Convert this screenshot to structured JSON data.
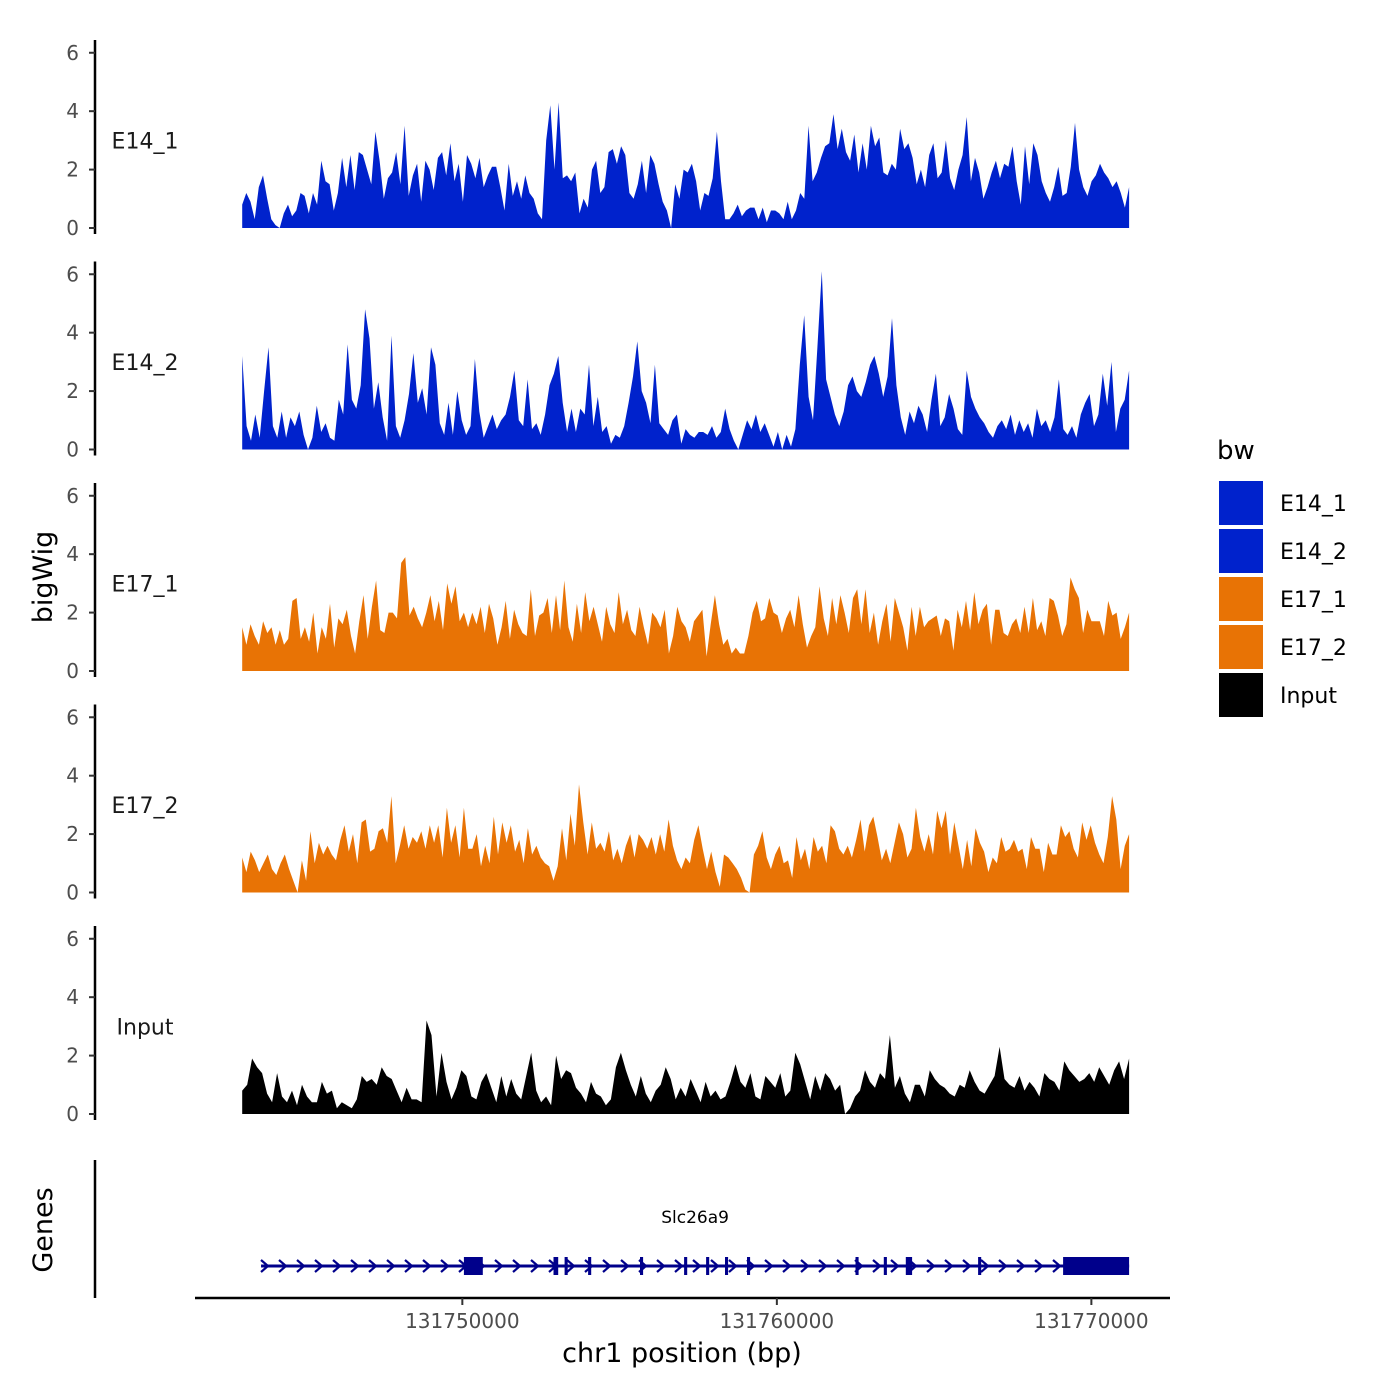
{
  "chart_data": {
    "type": "area",
    "ylabel": "bigWig",
    "xlabel": "chr1 position (bp)",
    "ylim": [
      0,
      6.3
    ],
    "yticks": [
      0,
      2,
      4,
      6
    ],
    "xlim": [
      131741500,
      131772500
    ],
    "xticks": [
      131750000,
      131760000,
      131770000
    ],
    "xtick_labels": [
      "131750000",
      "131760000",
      "131770000"
    ],
    "x_start": 131743000,
    "x_end": 131771200,
    "legend": {
      "title": "bw",
      "placement": "right",
      "entries": [
        {
          "name": "E14_1",
          "color": "#0022cc"
        },
        {
          "name": "E14_2",
          "color": "#0022cc"
        },
        {
          "name": "E17_1",
          "color": "#e87305"
        },
        {
          "name": "E17_2",
          "color": "#e87305"
        },
        {
          "name": "Input",
          "color": "#000000"
        }
      ]
    },
    "series": [
      {
        "name": "E14_1",
        "color": "#0022cc",
        "values": [
          0.8,
          1.2,
          0.9,
          0.3,
          1.4,
          1.8,
          1.0,
          0.3,
          0.1,
          0.0,
          0.5,
          0.8,
          0.4,
          0.6,
          1.2,
          1.1,
          0.5,
          1.2,
          0.8,
          2.3,
          1.6,
          1.5,
          0.6,
          1.2,
          2.4,
          1.4,
          2.5,
          1.3,
          2.6,
          2.5,
          2.0,
          1.5,
          3.3,
          2.3,
          1.0,
          1.7,
          1.9,
          2.6,
          1.5,
          3.5,
          1.1,
          1.8,
          2.2,
          0.9,
          2.3,
          2.0,
          1.3,
          2.4,
          2.6,
          1.8,
          2.9,
          1.6,
          2.2,
          0.9,
          2.5,
          2.2,
          1.7,
          2.4,
          1.4,
          1.8,
          2.1,
          2.1,
          1.4,
          0.6,
          2.2,
          1.1,
          1.6,
          1.0,
          1.8,
          1.2,
          1.0,
          0.5,
          0.3,
          3.0,
          4.2,
          2.0,
          4.3,
          1.7,
          1.8,
          1.6,
          1.9,
          0.5,
          1.0,
          0.7,
          2.0,
          2.3,
          1.2,
          1.4,
          2.6,
          2.7,
          2.2,
          2.8,
          2.5,
          1.2,
          1.0,
          1.5,
          2.3,
          1.2,
          2.5,
          2.2,
          1.5,
          0.9,
          0.6,
          0.0,
          1.5,
          1.0,
          2.0,
          1.9,
          2.2,
          1.6,
          0.6,
          1.2,
          1.1,
          1.7,
          3.3,
          1.6,
          0.3,
          0.3,
          0.5,
          0.8,
          0.4,
          0.6,
          0.7,
          0.7,
          0.3,
          0.7,
          0.2,
          0.6,
          0.6,
          0.5,
          0.3,
          0.9,
          0.3,
          0.6,
          1.2,
          1.0,
          3.5,
          1.6,
          1.9,
          2.4,
          2.8,
          2.9,
          3.9,
          2.7,
          3.4,
          2.6,
          2.3,
          3.2,
          1.9,
          2.9,
          2.0,
          3.5,
          2.8,
          3.1,
          1.9,
          1.8,
          2.2,
          2.0,
          3.4,
          2.7,
          2.9,
          2.4,
          1.5,
          2.0,
          1.4,
          2.5,
          2.9,
          1.7,
          1.9,
          3.0,
          1.7,
          1.3,
          2.0,
          2.5,
          3.8,
          1.6,
          2.4,
          1.9,
          1.0,
          1.4,
          1.9,
          2.3,
          1.7,
          2.2,
          2.1,
          2.8,
          1.6,
          0.8,
          2.8,
          1.5,
          2.9,
          2.5,
          1.6,
          1.2,
          0.9,
          1.4,
          2.1,
          1.1,
          1.2,
          2.1,
          3.6,
          2.0,
          1.4,
          1.1,
          1.6,
          1.8,
          2.2,
          1.9,
          1.7,
          1.4,
          1.6,
          1.2,
          0.7,
          1.4
        ]
      },
      {
        "name": "E14_2",
        "color": "#0022cc",
        "values": [
          3.2,
          0.8,
          0.3,
          1.2,
          0.4,
          2.0,
          3.5,
          0.8,
          0.4,
          1.3,
          0.4,
          1.1,
          0.8,
          1.3,
          0.5,
          0.0,
          0.4,
          1.5,
          0.6,
          0.9,
          0.4,
          0.3,
          1.7,
          1.2,
          3.6,
          1.7,
          1.4,
          2.2,
          4.8,
          3.8,
          1.4,
          2.3,
          1.1,
          0.3,
          3.9,
          0.8,
          0.4,
          1.0,
          1.9,
          3.3,
          1.6,
          2.1,
          1.2,
          3.5,
          2.9,
          0.9,
          0.5,
          1.6,
          0.5,
          2.0,
          1.0,
          0.5,
          0.8,
          3.1,
          1.3,
          0.4,
          0.8,
          1.2,
          0.7,
          1.0,
          1.2,
          1.8,
          2.7,
          1.0,
          0.8,
          2.4,
          0.7,
          0.9,
          0.5,
          1.2,
          2.2,
          2.6,
          3.2,
          1.6,
          0.6,
          1.4,
          0.6,
          1.4,
          1.2,
          2.9,
          0.8,
          1.8,
          0.6,
          0.8,
          0.2,
          0.5,
          0.4,
          0.8,
          1.6,
          2.5,
          3.7,
          2.0,
          1.6,
          0.9,
          2.9,
          0.9,
          0.7,
          0.5,
          1.0,
          1.2,
          0.2,
          0.7,
          0.5,
          0.4,
          0.6,
          0.6,
          0.5,
          0.8,
          0.4,
          0.6,
          1.4,
          0.7,
          0.3,
          0.0,
          0.5,
          1.0,
          0.7,
          1.2,
          0.6,
          0.9,
          0.5,
          0.1,
          0.6,
          0.0,
          0.5,
          0.1,
          0.7,
          2.9,
          4.6,
          1.8,
          1.0,
          3.5,
          6.1,
          2.4,
          1.8,
          1.2,
          0.8,
          1.3,
          2.2,
          2.5,
          2.0,
          1.8,
          2.3,
          2.9,
          3.2,
          2.6,
          1.8,
          2.5,
          4.5,
          2.2,
          1.1,
          0.5,
          1.3,
          0.9,
          1.5,
          1.2,
          0.6,
          1.7,
          2.6,
          0.8,
          1.1,
          1.9,
          1.4,
          0.7,
          0.5,
          2.7,
          1.8,
          1.4,
          1.1,
          0.9,
          0.6,
          0.4,
          0.8,
          1.0,
          0.7,
          1.2,
          0.5,
          1.0,
          0.6,
          0.9,
          0.4,
          1.4,
          0.8,
          1.0,
          0.6,
          1.1,
          2.4,
          0.7,
          0.5,
          0.8,
          0.4,
          1.2,
          1.6,
          1.9,
          0.8,
          1.2,
          2.6,
          1.5,
          3.0,
          0.6,
          1.4,
          1.7,
          2.7
        ]
      },
      {
        "name": "E17_1",
        "color": "#e87305",
        "values": [
          1.5,
          0.9,
          1.6,
          1.2,
          0.9,
          1.7,
          1.3,
          1.5,
          0.9,
          1.4,
          0.9,
          1.1,
          2.4,
          2.5,
          1.1,
          1.5,
          1.0,
          2.0,
          0.6,
          1.5,
          1.1,
          2.3,
          0.8,
          1.8,
          1.6,
          2.1,
          1.2,
          0.6,
          1.7,
          2.6,
          1.1,
          2.2,
          3.1,
          1.4,
          1.3,
          2.0,
          2.0,
          1.8,
          3.7,
          3.9,
          1.9,
          2.2,
          1.8,
          1.5,
          2.0,
          2.6,
          1.7,
          2.4,
          1.4,
          3.0,
          2.3,
          2.9,
          1.7,
          2.0,
          1.5,
          2.0,
          1.6,
          2.2,
          1.3,
          2.3,
          1.8,
          0.9,
          1.5,
          2.4,
          1.1,
          2.1,
          1.6,
          1.3,
          1.2,
          2.8,
          1.2,
          1.9,
          2.0,
          2.5,
          1.3,
          2.6,
          1.4,
          3.1,
          1.5,
          1.0,
          2.3,
          1.3,
          2.7,
          1.7,
          2.2,
          1.6,
          1.0,
          2.2,
          1.6,
          1.3,
          2.7,
          1.6,
          2.1,
          1.4,
          1.2,
          2.2,
          1.5,
          0.9,
          2.0,
          1.8,
          1.5,
          2.1,
          0.6,
          1.2,
          2.2,
          1.7,
          1.5,
          1.0,
          1.7,
          1.9,
          2.1,
          0.5,
          1.6,
          2.6,
          1.6,
          0.9,
          1.1,
          0.6,
          0.8,
          0.6,
          0.6,
          1.2,
          2.0,
          2.4,
          1.7,
          1.8,
          2.5,
          2.0,
          1.9,
          1.3,
          1.8,
          2.1,
          1.5,
          2.6,
          1.6,
          0.8,
          1.2,
          1.5,
          2.9,
          1.8,
          1.2,
          2.5,
          1.6,
          2.6,
          2.0,
          1.3,
          2.5,
          2.8,
          1.6,
          2.8,
          1.3,
          2.0,
          0.9,
          1.7,
          2.3,
          1.0,
          2.5,
          2.0,
          1.5,
          0.7,
          2.2,
          1.2,
          2.2,
          1.5,
          1.7,
          1.8,
          1.9,
          1.2,
          1.8,
          1.7,
          0.7,
          2.1,
          1.5,
          2.4,
          1.4,
          2.7,
          1.6,
          2.1,
          2.3,
          0.9,
          2.1,
          2.1,
          1.3,
          1.2,
          1.6,
          1.8,
          1.3,
          2.2,
          1.3,
          2.5,
          1.4,
          1.7,
          1.2,
          2.5,
          2.4,
          1.9,
          1.2,
          1.6,
          3.2,
          2.8,
          2.5,
          1.3,
          2.1,
          1.7,
          1.7,
          1.7,
          1.2,
          2.4,
          1.9,
          2.0,
          1.1,
          1.5,
          2.0
        ]
      },
      {
        "name": "E17_2",
        "color": "#e87305",
        "values": [
          1.2,
          0.7,
          1.4,
          1.1,
          0.7,
          1.0,
          1.3,
          0.8,
          0.6,
          1.0,
          1.3,
          0.8,
          0.4,
          0.0,
          1.1,
          0.4,
          2.1,
          1.0,
          1.7,
          1.3,
          1.6,
          1.3,
          1.1,
          1.8,
          2.3,
          1.4,
          2.0,
          1.0,
          2.4,
          2.5,
          1.4,
          1.5,
          2.1,
          2.2,
          1.7,
          3.3,
          1.0,
          1.6,
          2.3,
          1.5,
          1.9,
          1.7,
          2.1,
          1.5,
          2.3,
          1.7,
          2.3,
          1.2,
          2.9,
          1.7,
          2.3,
          1.2,
          2.9,
          1.5,
          1.5,
          2.0,
          0.9,
          1.6,
          1.0,
          2.6,
          1.3,
          2.4,
          1.7,
          2.3,
          1.4,
          1.8,
          1.0,
          2.2,
          1.3,
          1.6,
          1.2,
          1.0,
          0.9,
          0.4,
          0.9,
          2.2,
          1.1,
          2.7,
          1.6,
          3.7,
          2.4,
          1.3,
          2.4,
          1.5,
          1.7,
          1.4,
          2.1,
          1.1,
          1.5,
          1.0,
          1.6,
          2.0,
          1.2,
          2.0,
          1.8,
          1.5,
          1.9,
          1.3,
          2.0,
          1.4,
          2.5,
          1.6,
          1.1,
          0.8,
          1.2,
          1.0,
          1.8,
          2.3,
          1.5,
          0.8,
          1.4,
          0.7,
          0.2,
          1.3,
          1.2,
          1.0,
          0.8,
          0.5,
          0.1,
          0.0,
          1.3,
          1.6,
          2.1,
          1.2,
          0.8,
          1.3,
          1.6,
          1.0,
          1.1,
          0.5,
          1.9,
          1.1,
          1.5,
          0.8,
          1.9,
          1.4,
          1.6,
          1.0,
          2.3,
          2.1,
          1.5,
          1.3,
          1.6,
          1.2,
          1.8,
          2.5,
          1.4,
          2.3,
          2.6,
          1.9,
          1.1,
          1.5,
          1.0,
          1.7,
          2.4,
          2.0,
          1.2,
          1.5,
          2.9,
          1.9,
          1.4,
          2.0,
          1.3,
          2.8,
          2.2,
          2.8,
          1.3,
          2.4,
          1.6,
          0.8,
          1.8,
          0.9,
          2.2,
          1.7,
          1.4,
          0.7,
          1.2,
          1.0,
          1.9,
          1.4,
          1.5,
          1.8,
          1.4,
          1.5,
          0.8,
          1.9,
          1.5,
          1.5,
          0.7,
          1.7,
          1.3,
          1.3,
          2.3,
          1.9,
          2.1,
          1.5,
          1.2,
          2.4,
          1.8,
          2.3,
          1.7,
          1.3,
          1.0,
          1.9,
          3.3,
          2.5,
          0.8,
          1.6,
          2.0
        ]
      },
      {
        "name": "Input",
        "color": "#000000",
        "values": [
          0.8,
          1.0,
          1.9,
          1.6,
          1.4,
          0.7,
          0.4,
          1.4,
          0.6,
          0.4,
          0.8,
          0.3,
          1.0,
          0.6,
          0.4,
          0.4,
          1.1,
          0.7,
          0.8,
          0.2,
          0.4,
          0.3,
          0.2,
          0.5,
          1.3,
          1.1,
          1.2,
          1.0,
          1.6,
          1.3,
          1.2,
          0.8,
          0.4,
          0.9,
          0.5,
          0.5,
          0.4,
          3.2,
          2.7,
          0.6,
          2.1,
          1.1,
          0.5,
          0.9,
          1.5,
          1.3,
          0.6,
          0.5,
          1.1,
          1.4,
          0.9,
          0.4,
          1.3,
          0.6,
          1.2,
          0.7,
          0.5,
          1.3,
          2.1,
          0.8,
          0.4,
          0.6,
          0.3,
          2.0,
          1.2,
          1.5,
          1.4,
          0.9,
          0.7,
          0.4,
          1.1,
          0.7,
          0.6,
          0.3,
          0.5,
          1.6,
          2.1,
          1.5,
          1.0,
          0.6,
          1.3,
          0.7,
          0.4,
          0.8,
          1.0,
          1.6,
          1.2,
          0.5,
          0.9,
          0.6,
          1.2,
          0.8,
          0.4,
          1.1,
          0.6,
          0.8,
          0.5,
          0.6,
          1.1,
          1.7,
          1.1,
          0.9,
          1.4,
          0.6,
          0.5,
          1.3,
          1.1,
          0.9,
          1.4,
          0.6,
          0.8,
          2.1,
          1.7,
          1.1,
          0.5,
          1.3,
          0.8,
          1.4,
          1.2,
          0.8,
          1.0,
          0.0,
          0.2,
          0.6,
          0.8,
          1.5,
          1.1,
          0.9,
          1.4,
          1.2,
          2.7,
          0.9,
          1.3,
          0.7,
          0.4,
          1.0,
          1.0,
          0.6,
          1.5,
          1.2,
          1.0,
          0.9,
          0.7,
          0.6,
          1.0,
          0.9,
          1.5,
          1.1,
          0.8,
          0.7,
          1.0,
          1.3,
          2.3,
          1.2,
          1.0,
          0.9,
          1.3,
          0.8,
          1.1,
          0.9,
          0.6,
          1.4,
          1.2,
          1.1,
          0.8,
          1.8,
          1.5,
          1.3,
          1.1,
          1.2,
          1.4,
          1.1,
          1.6,
          1.3,
          1.0,
          1.5,
          1.8,
          1.2,
          1.9
        ]
      }
    ],
    "gene_track": {
      "ylabel": "Genes",
      "gene_name": "Slc26a9",
      "strand": "+",
      "color": "#00008b",
      "start": 131743600,
      "end": 131771200,
      "exons": [
        {
          "start": 131750050,
          "end": 131750650
        },
        {
          "start": 131752900,
          "end": 131753050
        },
        {
          "start": 131753250,
          "end": 131753350
        },
        {
          "start": 131754000,
          "end": 131754100
        },
        {
          "start": 131755650,
          "end": 131755750
        },
        {
          "start": 131757050,
          "end": 131757150
        },
        {
          "start": 131757750,
          "end": 131757850
        },
        {
          "start": 131758350,
          "end": 131758450
        },
        {
          "start": 131759050,
          "end": 131759150
        },
        {
          "start": 131762500,
          "end": 131762600
        },
        {
          "start": 131763400,
          "end": 131763500
        },
        {
          "start": 131764100,
          "end": 131764300
        },
        {
          "start": 131766400,
          "end": 131766500
        },
        {
          "start": 131769100,
          "end": 131771200
        }
      ]
    }
  }
}
